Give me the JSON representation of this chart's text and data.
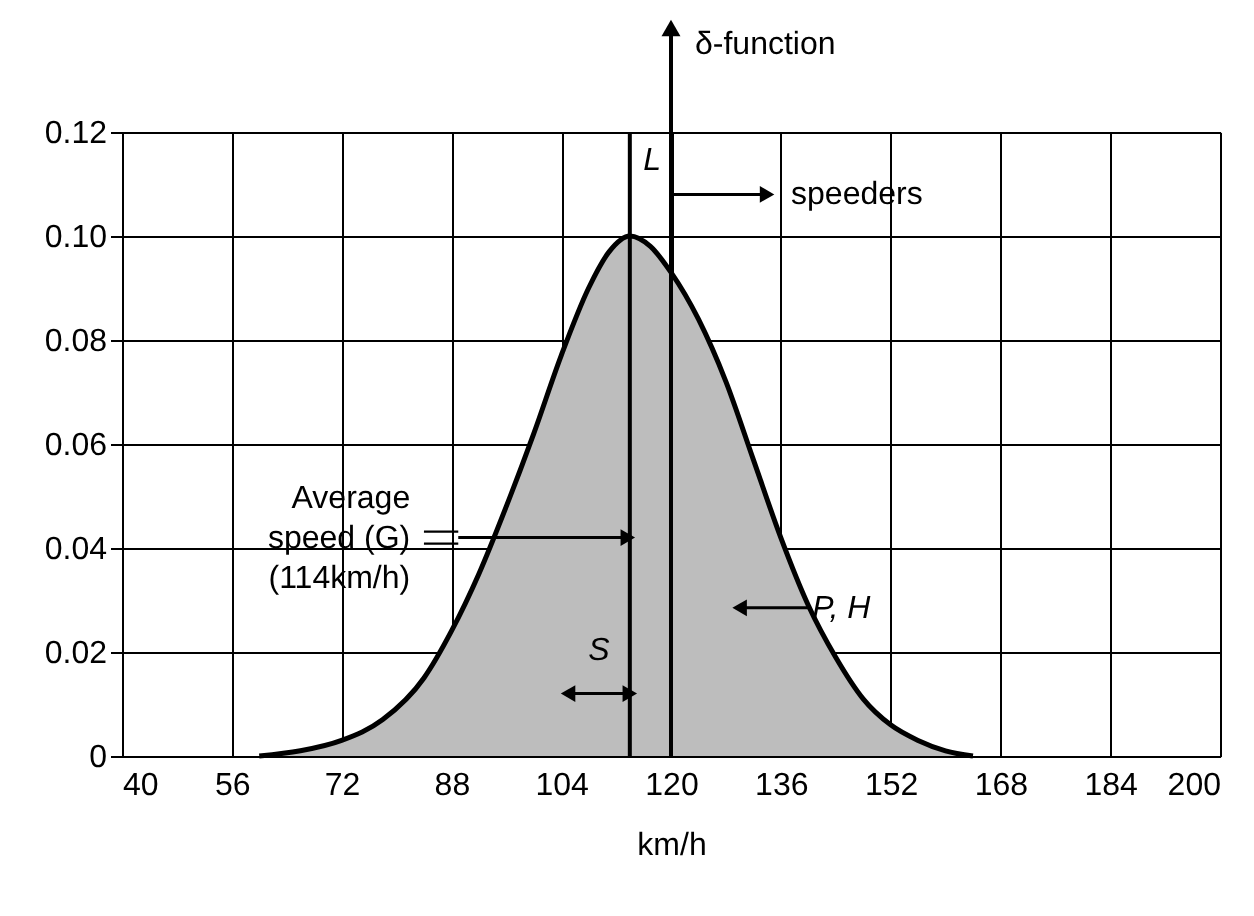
{
  "chart_data": {
    "type": "area",
    "xlabel": "km/h",
    "x": [
      60,
      66,
      72,
      78,
      84,
      88,
      92,
      96,
      100,
      104,
      108,
      111,
      114,
      117,
      120,
      124,
      128,
      132,
      136,
      140,
      144,
      148,
      152,
      156,
      160,
      164
    ],
    "series": [
      {
        "color": "#bdbdbd",
        "values": [
          0,
          0.001,
          0.003,
          0.007,
          0.015,
          0.024,
          0.035,
          0.048,
          0.062,
          0.077,
          0.09,
          0.097,
          0.1,
          0.098,
          0.093,
          0.084,
          0.072,
          0.057,
          0.042,
          0.029,
          0.019,
          0.011,
          0.006,
          0.003,
          0.001,
          0
        ]
      }
    ],
    "xlim": [
      40,
      200
    ],
    "xticks": [
      40,
      56,
      72,
      88,
      104,
      120,
      136,
      152,
      168,
      184,
      200
    ],
    "ylim": [
      0,
      0.12
    ],
    "yticks": [
      {
        "value": 0,
        "label": "0"
      },
      {
        "value": 0.02,
        "label": "0.02"
      },
      {
        "value": 0.04,
        "label": "0.04"
      },
      {
        "value": 0.06,
        "label": "0.06"
      },
      {
        "value": 0.08,
        "label": "0.08"
      },
      {
        "value": 0.1,
        "label": "0.10"
      },
      {
        "value": 0.12,
        "label": "0.12"
      }
    ],
    "grid": true,
    "ref_lines": [
      {
        "axis": "x",
        "value": 114
      },
      {
        "axis": "x",
        "value": 120,
        "label": "L"
      }
    ],
    "annotations": [
      "Average\nspeed  (G)\n(114km/h)",
      {
        "text": "P, H",
        "x": 130,
        "y": 0.0285
      },
      {
        "text": "S",
        "x": 114,
        "y": 0.012
      },
      "speeders",
      "δ-function"
    ]
  }
}
